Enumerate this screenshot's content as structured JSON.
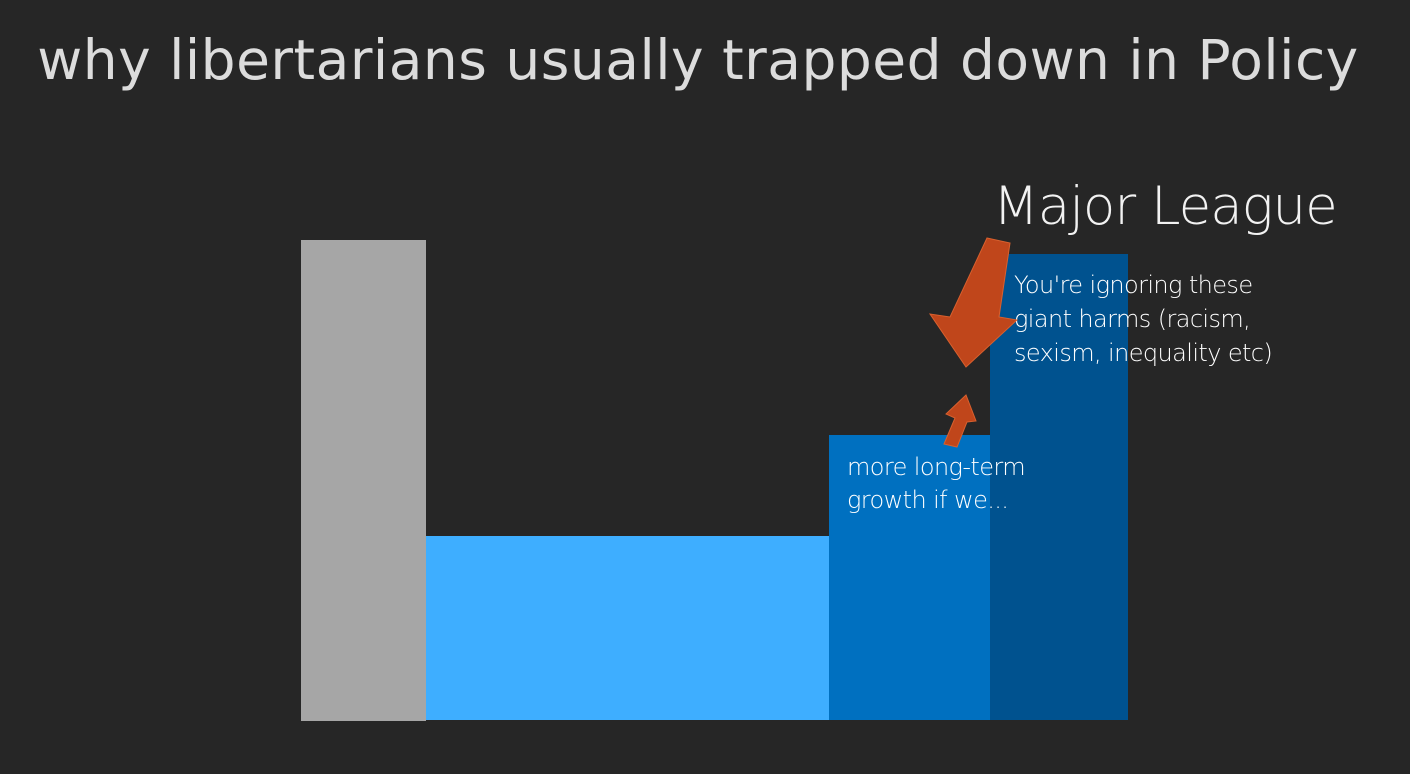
{
  "slide": {
    "title": "why libertarians usually trapped down in Policy"
  },
  "labels": {
    "major_league": "Major League",
    "harms_line1": "You're ignoring these",
    "harms_line2": "giant harms (racism,",
    "harms_line3": "sexism, inequality etc)",
    "growth_line1": "more long-term",
    "growth_line2": "growth if we..."
  },
  "colors": {
    "background": "#262626",
    "gray_bar": "#a6a6a6",
    "light_blue_bar": "#3eaeff",
    "mid_blue_bar": "#0070c0",
    "dark_blue_bar": "#00528f",
    "arrow": "#c0461b"
  },
  "icons": {
    "down_arrow": "down-arrow-icon",
    "up_arrow": "up-arrow-icon"
  }
}
